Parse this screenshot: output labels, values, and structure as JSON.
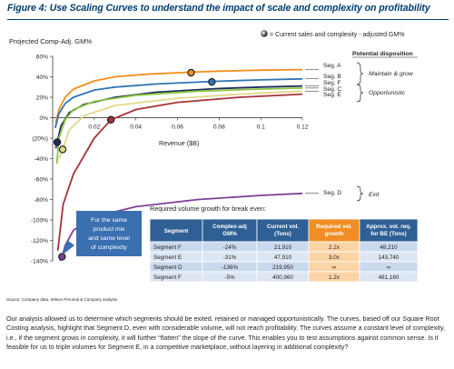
{
  "figure": {
    "title": "Figure 4: Use Scaling Curves to understand the impact of scale and complexity on profitability",
    "source": "Source: Company data, Wilson Perumal & Company analysis",
    "body": "Our analysis allowed us to determine which segments should be exited, retained or managed opportunistically. The curves, based off our Square Root Costing analysis, highlight that Segment D, even with considerable volume, will not reach profitability. The curves assume a constant level of complexity, i.e., if the segment grows in complexity, it will further “flatten” the slope of the curve. This enables you to test assumptions against common sense. Is it feasible for us to triple volumes for Segment E, in a competitive marketplace, without layering in additional complexity?"
  },
  "legend": {
    "marker_label": "= Current sales and complexity - adjusted GM%",
    "disposition_header": "Potential disposition",
    "dispositions": [
      {
        "label": "Maintain & grow"
      },
      {
        "label": "Opportunistic"
      },
      {
        "label": "Exit"
      }
    ]
  },
  "callout": "For the same product mix and same level of complexity",
  "table": {
    "caption": "Required volume growth for break even:",
    "headers": [
      "Segment",
      "Complex-adj GM%",
      "Current vol. (Tons)",
      "Required vol. growth",
      "Approx. vol. req. for BE (Tons)"
    ],
    "rows": [
      [
        "Segment F",
        "-24%",
        "21,910",
        "2.2x",
        "48,210"
      ],
      [
        "Segment E",
        "-31%",
        "47,910",
        "3.0x",
        "143,740"
      ],
      [
        "Segment D",
        "-136%",
        "219,950",
        "∞",
        "∞"
      ],
      [
        "Segment F",
        "-5%",
        "400,960",
        "1.2x",
        "481,160"
      ]
    ]
  },
  "chart_data": {
    "type": "line",
    "title": "",
    "xlabel": "Revenue ($B)",
    "ylabel": "Projected Comp-Adj. GM%",
    "xlim": [
      0,
      0.12
    ],
    "ylim": [
      -140,
      60
    ],
    "x_ticks": [
      "0.02",
      "0.04",
      "0.06",
      "0.08",
      "0.1",
      "0.12"
    ],
    "y_ticks": [
      "60%",
      "40%",
      "20%",
      "0%",
      "(20%)",
      "-40%",
      "-60%",
      "-80%",
      "-100%",
      "-120%",
      "-140%"
    ],
    "grid": false,
    "series": [
      {
        "name": "Seg. A",
        "color": "#f28e1c",
        "points": [
          [
            0.0015,
            -5
          ],
          [
            0.003,
            8
          ],
          [
            0.006,
            20
          ],
          [
            0.01,
            28
          ],
          [
            0.02,
            36
          ],
          [
            0.03,
            40
          ],
          [
            0.045,
            42.5
          ],
          [
            0.0665,
            44.5
          ],
          [
            0.08,
            45.5
          ],
          [
            0.1,
            46.5
          ],
          [
            0.12,
            47
          ]
        ],
        "marker": [
          0.0665,
          44
        ]
      },
      {
        "name": "Seg. B",
        "color": "#2e75b6",
        "points": [
          [
            0.0012,
            -10
          ],
          [
            0.003,
            4
          ],
          [
            0.006,
            14
          ],
          [
            0.01,
            20
          ],
          [
            0.02,
            27
          ],
          [
            0.03,
            30
          ],
          [
            0.05,
            33
          ],
          [
            0.0765,
            35.5
          ],
          [
            0.1,
            37
          ],
          [
            0.12,
            38
          ]
        ],
        "marker": [
          0.0765,
          35
        ]
      },
      {
        "name": "Seg. F",
        "color": "#1d2d5b",
        "points": [
          [
            0.0015,
            -30
          ],
          [
            0.0022,
            -24
          ],
          [
            0.004,
            -8
          ],
          [
            0.008,
            5
          ],
          [
            0.015,
            13
          ],
          [
            0.03,
            20
          ],
          [
            0.05,
            25
          ],
          [
            0.08,
            28.5
          ],
          [
            0.1,
            30
          ],
          [
            0.12,
            31
          ]
        ],
        "marker": [
          0.0022,
          -24
        ]
      },
      {
        "name": "Seg. C",
        "color": "#8dc63f",
        "points": [
          [
            0.002,
            -45
          ],
          [
            0.003,
            -20
          ],
          [
            0.006,
            -2
          ],
          [
            0.01,
            8
          ],
          [
            0.02,
            16
          ],
          [
            0.04,
            22
          ],
          [
            0.07,
            26
          ],
          [
            0.1,
            28
          ],
          [
            0.12,
            29
          ]
        ],
        "marker": null
      },
      {
        "name": "Seg. E",
        "color": "#e3d88a",
        "points": [
          [
            0.003,
            -40
          ],
          [
            0.0048,
            -31
          ],
          [
            0.008,
            -12
          ],
          [
            0.015,
            2
          ],
          [
            0.03,
            12
          ],
          [
            0.06,
            19
          ],
          [
            0.09,
            23
          ],
          [
            0.12,
            26
          ]
        ],
        "marker": [
          0.0048,
          -31
        ]
      },
      {
        "name": "Seg. D",
        "color": "#7f3f98",
        "points": [
          [
            0.0035,
            -140
          ],
          [
            0.0045,
            -136
          ],
          [
            0.006,
            -125
          ],
          [
            0.01,
            -110
          ],
          [
            0.02,
            -97
          ],
          [
            0.04,
            -87
          ],
          [
            0.07,
            -80
          ],
          [
            0.1,
            -76
          ],
          [
            0.12,
            -74
          ]
        ],
        "marker": [
          0.0045,
          -136
        ]
      },
      {
        "name": "",
        "color": "#a6323a",
        "points": [
          [
            0.0025,
            -130
          ],
          [
            0.005,
            -85
          ],
          [
            0.01,
            -55
          ],
          [
            0.02,
            -20
          ],
          [
            0.028,
            -2
          ],
          [
            0.04,
            8
          ],
          [
            0.06,
            15
          ],
          [
            0.09,
            20
          ],
          [
            0.12,
            23
          ]
        ],
        "marker": [
          0.028,
          -2
        ]
      }
    ]
  }
}
